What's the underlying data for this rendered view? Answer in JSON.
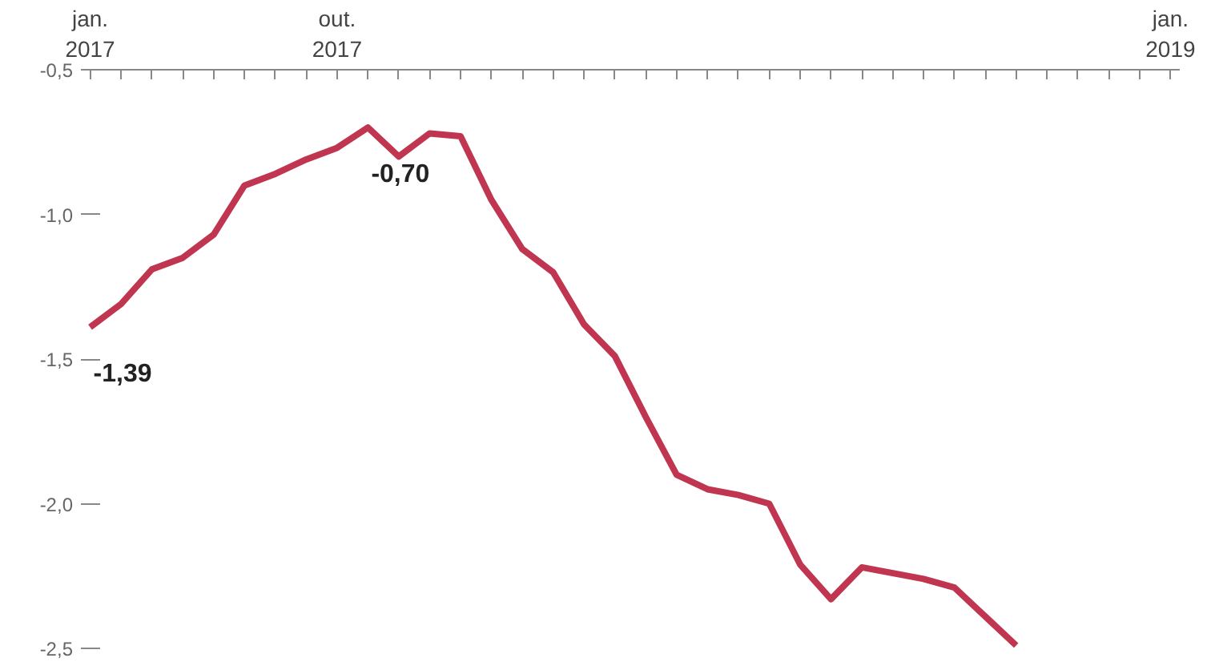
{
  "chart_data": {
    "type": "line",
    "categories": [
      "jan.\n2017",
      null,
      null,
      null,
      null,
      null,
      null,
      null,
      "out.\n2017",
      null,
      null,
      null,
      null,
      null,
      null,
      null,
      null,
      null,
      null,
      null,
      null,
      null,
      null,
      null,
      null,
      null,
      null,
      null,
      null,
      null,
      null,
      null,
      null,
      null,
      null,
      "jan.\n2019"
    ],
    "series": [
      {
        "color": "#c0354f",
        "values": [
          -1.39,
          -1.31,
          -1.19,
          -1.15,
          -1.07,
          -0.9,
          -0.86,
          -0.81,
          -0.77,
          -0.7,
          -0.8,
          -0.72,
          -0.73,
          -0.95,
          -1.12,
          -1.2,
          -1.38,
          -1.49,
          -1.7,
          -1.9,
          -1.95,
          -1.97,
          -2.0,
          -2.21,
          -2.33,
          -2.22,
          -2.24,
          -2.26,
          -2.29,
          -2.39,
          -2.49,
          null,
          null,
          null,
          null,
          null
        ],
        "value_labels": [
          "-1,39",
          null,
          null,
          null,
          null,
          null,
          null,
          null,
          null,
          "-0,70",
          null,
          null,
          null,
          null,
          null,
          null,
          null,
          null,
          null,
          null,
          null,
          null,
          null,
          null,
          null,
          null,
          null,
          null,
          null,
          null,
          null,
          null,
          null,
          null,
          null,
          null
        ]
      }
    ],
    "ylim": [
      -2.5,
      -0.5
    ],
    "yticks": [
      {
        "value": -0.5,
        "label": "-0,5"
      },
      {
        "value": -1.0,
        "label": "-1,0"
      },
      {
        "value": -1.5,
        "label": "-1,5"
      },
      {
        "value": -2.0,
        "label": "-2,0"
      },
      {
        "value": -2.5,
        "label": "-2,5"
      }
    ],
    "grid": false,
    "marker": "none",
    "line_style": "solid"
  }
}
